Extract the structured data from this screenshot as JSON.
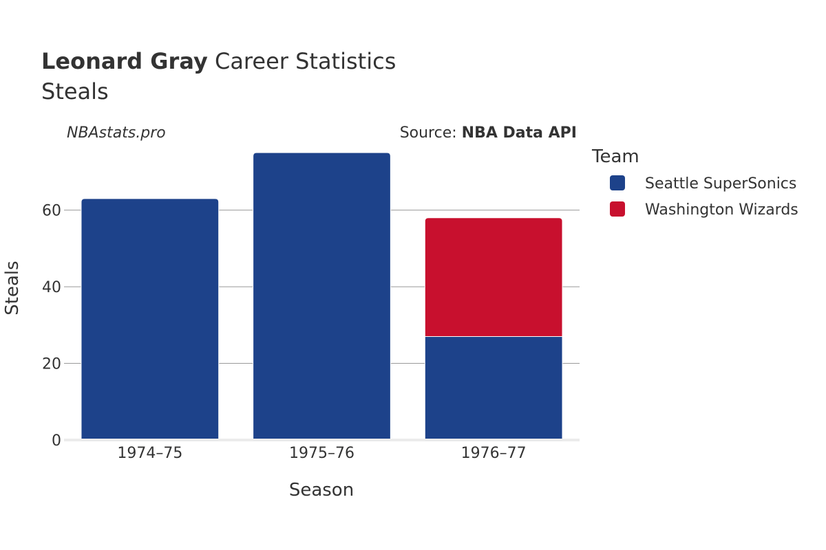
{
  "header": {
    "title_bold": "Leonard Gray",
    "title_rest": "Career Statistics",
    "subtitle": "Steals"
  },
  "watermark": "NBAstats.pro",
  "source": {
    "prefix": "Source: ",
    "name": "NBA Data API"
  },
  "legend": {
    "title": "Team",
    "items": [
      {
        "label": "Seattle SuperSonics",
        "color": "#1d428a"
      },
      {
        "label": "Washington Wizards",
        "color": "#c8102e"
      }
    ]
  },
  "chart_data": {
    "type": "bar",
    "stacked": true,
    "categories": [
      "1974–75",
      "1975–76",
      "1976–77"
    ],
    "series": [
      {
        "name": "Seattle SuperSonics",
        "color": "#1d428a",
        "values": [
          63,
          75,
          27
        ]
      },
      {
        "name": "Washington Wizards",
        "color": "#c8102e",
        "values": [
          0,
          0,
          31
        ]
      }
    ],
    "xlabel": "Season",
    "ylabel": "Steals",
    "ylim": [
      0,
      75
    ],
    "yticks": [
      0,
      20,
      40,
      60
    ],
    "grid": true,
    "legend_position": "right"
  }
}
